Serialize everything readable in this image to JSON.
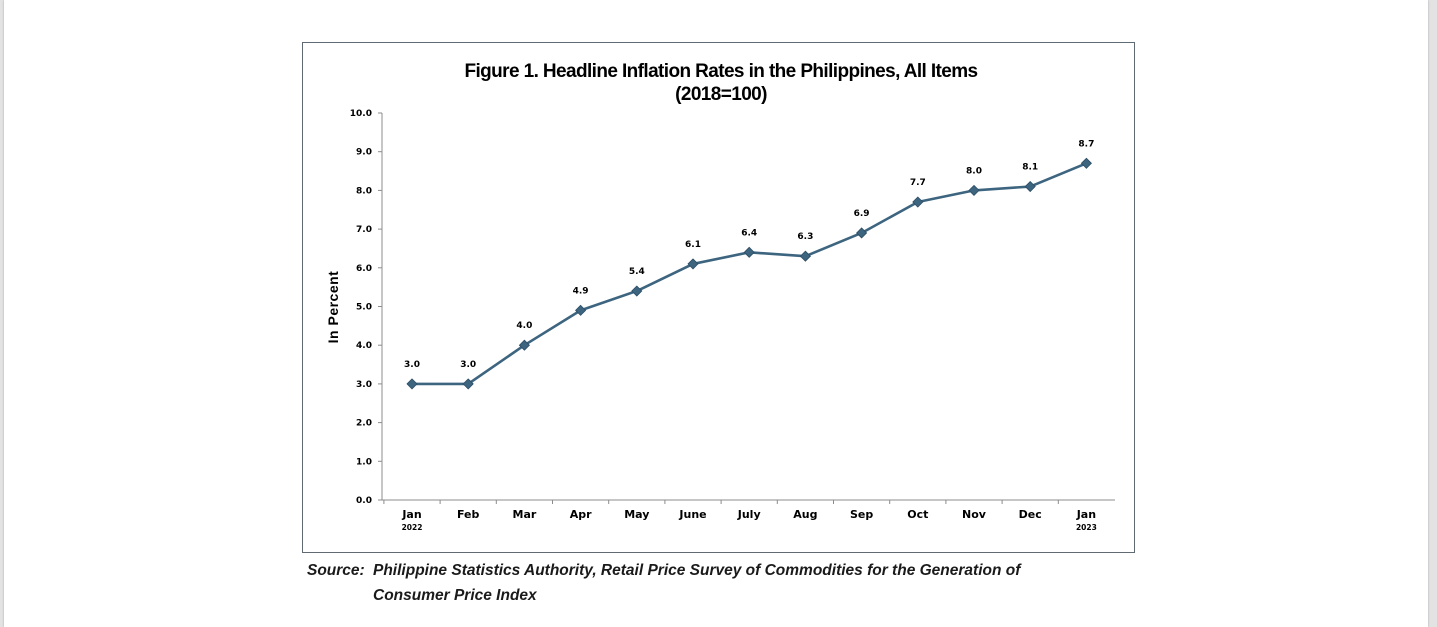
{
  "chart_data": {
    "type": "line",
    "title_line1": "Figure 1. Headline Inflation Rates in the Philippines, All Items",
    "title_line2": "(2018=100)",
    "ylabel": "In Percent",
    "ylim": [
      0,
      10
    ],
    "yticks": [
      "0.0",
      "1.0",
      "2.0",
      "3.0",
      "4.0",
      "5.0",
      "6.0",
      "7.0",
      "8.0",
      "9.0",
      "10.0"
    ],
    "categories": [
      "Jan",
      "Feb",
      "Mar",
      "Apr",
      "May",
      "June",
      "July",
      "Aug",
      "Sep",
      "Oct",
      "Nov",
      "Dec",
      "Jan"
    ],
    "category_sublabels": [
      "2022",
      "",
      "",
      "",
      "",
      "",
      "",
      "",
      "",
      "",
      "",
      "",
      "2023"
    ],
    "values": [
      3.0,
      3.0,
      4.0,
      4.9,
      5.4,
      6.1,
      6.4,
      6.3,
      6.9,
      7.7,
      8.0,
      8.1,
      8.7
    ],
    "data_labels": [
      "3.0",
      "3.0",
      "4.0",
      "4.9",
      "5.4",
      "6.1",
      "6.4",
      "6.3",
      "6.9",
      "7.7",
      "8.0",
      "8.1",
      "8.7"
    ],
    "line_color": "#3d6580",
    "marker": "diamond",
    "grid": false,
    "legend": "none"
  },
  "source": {
    "label": "Source:",
    "line1": "Philippine Statistics Authority, Retail Price Survey of Commodities for the Generation of",
    "line2": "Consumer Price Index"
  }
}
